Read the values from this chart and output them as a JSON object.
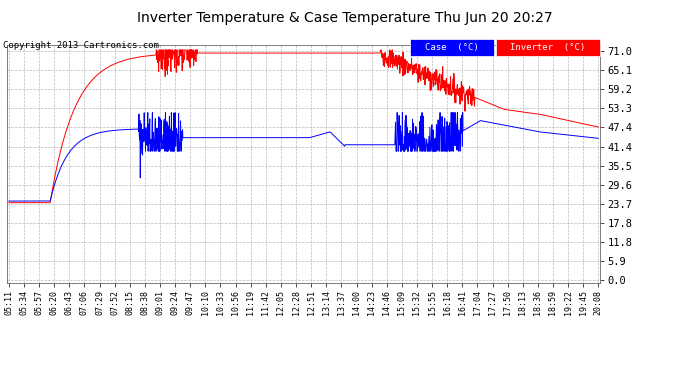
{
  "title": "Inverter Temperature & Case Temperature Thu Jun 20 20:27",
  "copyright": "Copyright 2013 Cartronics.com",
  "legend_case_label": "Case  (°C)",
  "legend_inverter_label": "Inverter  (°C)",
  "case_color": "#0000ff",
  "inverter_color": "#ff0000",
  "bg_color": "#ffffff",
  "plot_bg_color": "#ffffff",
  "grid_color": "#aaaaaa",
  "yticks": [
    0.0,
    5.9,
    11.8,
    17.8,
    23.7,
    29.6,
    35.5,
    41.4,
    47.4,
    53.3,
    59.2,
    65.1,
    71.0
  ],
  "ylim": [
    -1.0,
    73.0
  ],
  "xtick_labels": [
    "05:11",
    "05:34",
    "05:57",
    "06:20",
    "06:43",
    "07:06",
    "07:29",
    "07:52",
    "08:15",
    "08:38",
    "09:01",
    "09:24",
    "09:47",
    "10:10",
    "10:33",
    "10:56",
    "11:19",
    "11:42",
    "12:05",
    "12:28",
    "12:51",
    "13:14",
    "13:37",
    "14:00",
    "14:23",
    "14:46",
    "15:09",
    "15:32",
    "15:55",
    "16:18",
    "16:41",
    "17:04",
    "17:27",
    "17:50",
    "18:13",
    "18:36",
    "18:59",
    "19:22",
    "19:45",
    "20:08"
  ]
}
